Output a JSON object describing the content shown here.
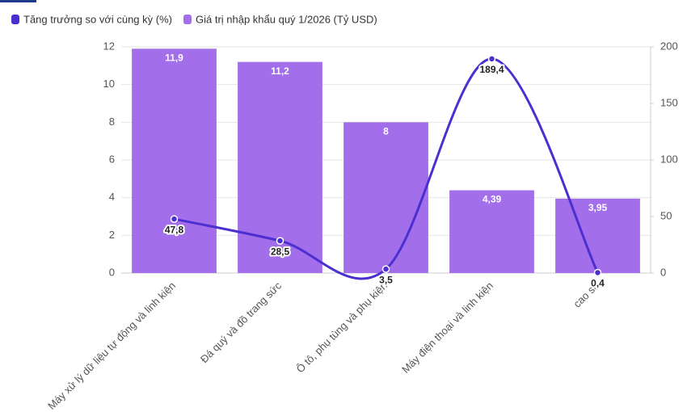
{
  "chart_data": {
    "type": "combo",
    "categories": [
      "Máy xử lý dữ liệu tự động và linh kiện",
      "Đá quý và đồ trang sức",
      "Ô tô, phụ tùng và phụ kiện",
      "Máy điện thoại và linh kiện",
      "cao su"
    ],
    "series": [
      {
        "name": "Tăng trưởng so với cùng kỳ (%)",
        "type": "line",
        "axis": "y2",
        "color": "#4b2fd1",
        "values": [
          47.8,
          28.5,
          3.5,
          189.4,
          0.4
        ],
        "value_labels": [
          "47,8",
          "28,5",
          "3,5",
          "189,4",
          "0,4"
        ]
      },
      {
        "name": "Giá trị nhập khẩu quý 1/2026 (Tỷ USD)",
        "type": "bar",
        "axis": "y",
        "color": "#a26ee9",
        "values": [
          11.9,
          11.2,
          8,
          4.39,
          3.95
        ],
        "value_labels": [
          "11,9",
          "11,2",
          "8",
          "4,39",
          "3,95"
        ]
      }
    ],
    "ylim": [
      0,
      12
    ],
    "yticks": [
      0,
      2,
      4,
      6,
      8,
      10,
      12
    ],
    "y2lim": [
      0,
      200
    ],
    "y2ticks": [
      0,
      50,
      100,
      150,
      200
    ],
    "grid": true,
    "legend": "top-left"
  }
}
